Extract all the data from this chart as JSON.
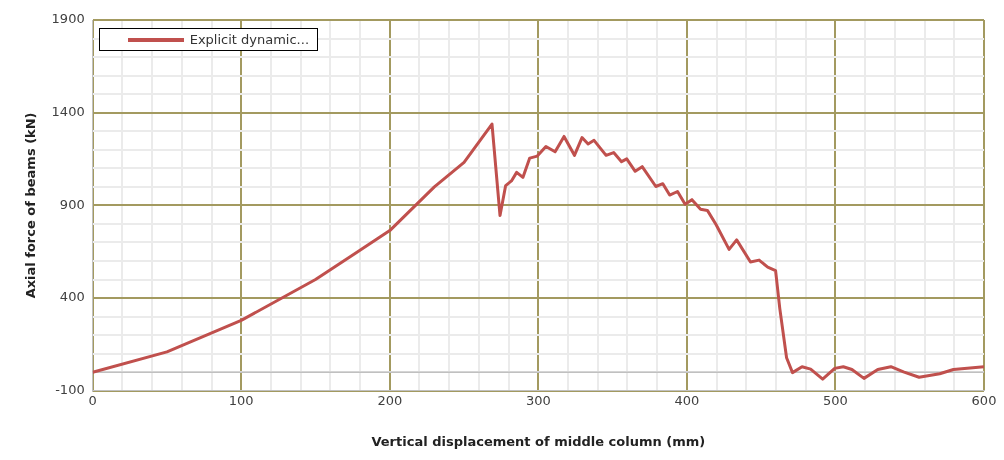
{
  "chart_data": {
    "type": "line",
    "xlabel": "Vertical displacement of middle column (mm)",
    "ylabel": "Axial force of beams (kN)",
    "xlim": [
      0,
      600
    ],
    "ylim": [
      -100,
      1900
    ],
    "xticks": [
      0,
      {
        "value": 20,
        "label": null
      },
      {
        "value": 40,
        "label": null
      },
      {
        "value": 60,
        "label": null
      },
      {
        "value": 80,
        "label": null
      },
      100,
      {
        "value": 120,
        "label": null
      },
      {
        "value": 140,
        "label": null
      },
      {
        "value": 160,
        "label": null
      },
      {
        "value": 180,
        "label": null
      },
      200,
      {
        "value": 220,
        "label": null
      },
      {
        "value": 240,
        "label": null
      },
      {
        "value": 260,
        "label": null
      },
      {
        "value": 280,
        "label": null
      },
      300,
      {
        "value": 320,
        "label": null
      },
      {
        "value": 340,
        "label": null
      },
      {
        "value": 360,
        "label": null
      },
      {
        "value": 380,
        "label": null
      },
      400,
      {
        "value": 420,
        "label": null
      },
      {
        "value": 440,
        "label": null
      },
      {
        "value": 460,
        "label": null
      },
      {
        "value": 480,
        "label": null
      },
      500,
      {
        "value": 520,
        "label": null
      },
      {
        "value": 540,
        "label": null
      },
      {
        "value": 560,
        "label": null
      },
      {
        "value": 580,
        "label": null
      },
      600
    ],
    "yticks": [
      -100,
      {
        "value": 0,
        "label": null
      },
      {
        "value": 100,
        "label": null
      },
      {
        "value": 200,
        "label": null
      },
      {
        "value": 300,
        "label": null
      },
      400,
      {
        "value": 500,
        "label": null
      },
      {
        "value": 600,
        "label": null
      },
      {
        "value": 700,
        "label": null
      },
      {
        "value": 800,
        "label": null
      },
      900,
      {
        "value": 1000,
        "label": null
      },
      {
        "value": 1100,
        "label": null
      },
      {
        "value": 1200,
        "label": null
      },
      {
        "value": 1300,
        "label": null
      },
      1400,
      {
        "value": 1500,
        "label": null
      },
      {
        "value": 1600,
        "label": null
      },
      {
        "value": 1700,
        "label": null
      },
      {
        "value": 1800,
        "label": null
      },
      1900
    ],
    "grid": true,
    "legend": "top left",
    "marker": "none",
    "line_style": "solid",
    "ref_lines": [
      {
        "axis": "y",
        "value": 0,
        "color": "#c0c0c0"
      }
    ],
    "series": [
      {
        "name": "Explicit dynamic...",
        "color": "#c0504d",
        "x": [
          0,
          50,
          100,
          150,
          200,
          230,
          250,
          268.8,
          274.2,
          278,
          281.9,
          285.4,
          289.6,
          294.2,
          299.3,
          305.1,
          311.3,
          317.3,
          324.3,
          329.4,
          333.5,
          337.5,
          345.6,
          350.7,
          356,
          359.5,
          365.2,
          369.9,
          379.1,
          383.8,
          388.4,
          393.7,
          398.8,
          403.4,
          409.2,
          413.8,
          419.6,
          428.4,
          433.5,
          442.8,
          448.6,
          454.4,
          459.7,
          462.5,
          467.1,
          471.1,
          477.5,
          483.3,
          491.4,
          499.5,
          505.3,
          511.1,
          519.2,
          528.5,
          537.3,
          545.8,
          556.3,
          570.2,
          579.4,
          600
        ],
        "values": [
          0,
          110,
          280,
          500,
          764,
          1000,
          1132,
          1339,
          845,
          1007,
          1032,
          1078,
          1051,
          1155,
          1166,
          1218,
          1189,
          1272,
          1170,
          1266,
          1231,
          1251,
          1170,
          1185,
          1136,
          1151,
          1084,
          1109,
          1002,
          1017,
          956,
          975,
          906,
          931,
          879,
          873,
          797,
          663,
          714,
          595,
          605,
          567,
          548,
          346,
          78,
          -2,
          30,
          17,
          -37,
          21,
          30,
          15,
          -33,
          15,
          30,
          2,
          -27,
          -8,
          15,
          30
        ]
      }
    ]
  }
}
